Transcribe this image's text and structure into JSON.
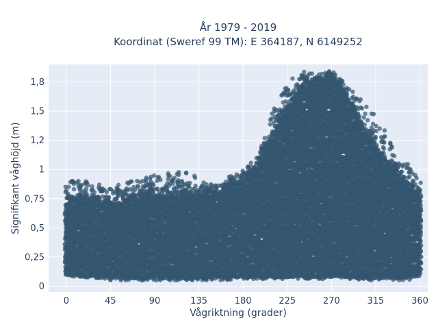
{
  "chart_data": {
    "type": "scatter",
    "title_line1": "År 1979 - 2019",
    "title_line2": "Koordinat (Sweref 99 TM): E 364187, N 6149252",
    "xlabel": "Vågriktning (grader)",
    "ylabel": "Signifikant våghöjd (m)",
    "xlim": [
      -18,
      368
    ],
    "ylim": [
      -0.05,
      1.9
    ],
    "x_ticks": [
      0,
      45,
      90,
      135,
      180,
      225,
      270,
      315,
      360
    ],
    "x_tick_labels": [
      "0",
      "45",
      "90",
      "135",
      "180",
      "225",
      "270",
      "315",
      "360"
    ],
    "y_ticks": [
      0,
      0.25,
      0.5,
      0.75,
      1,
      1.25,
      1.5,
      1.75
    ],
    "y_tick_labels": [
      "0",
      "0,25",
      "0,5",
      "0,75",
      "1",
      "1,2",
      "1,5",
      "1,8"
    ],
    "grid": true,
    "marker_color": "#34566f",
    "plot_bg": "#e5ecf6",
    "envelope": {
      "x": [
        0,
        20,
        45,
        70,
        90,
        120,
        150,
        180,
        195,
        210,
        225,
        240,
        255,
        270,
        285,
        300,
        315,
        330,
        345,
        360
      ],
      "lower": [
        0.1,
        0.09,
        0.08,
        0.08,
        0.08,
        0.08,
        0.08,
        0.09,
        0.09,
        0.09,
        0.09,
        0.09,
        0.09,
        0.09,
        0.09,
        0.08,
        0.08,
        0.08,
        0.08,
        0.1
      ],
      "upper": [
        0.72,
        0.78,
        0.72,
        0.76,
        0.8,
        0.8,
        0.8,
        0.9,
        1.05,
        1.3,
        1.55,
        1.72,
        1.78,
        1.8,
        1.65,
        1.4,
        1.2,
        1.05,
        0.9,
        0.78
      ],
      "outlier_max": [
        0.93,
        0.9,
        0.85,
        0.92,
        0.95,
        1.0,
        0.87,
        1.0,
        1.12,
        1.5,
        1.75,
        1.85,
        1.82,
        1.85,
        1.75,
        1.6,
        1.5,
        1.25,
        1.1,
        0.92
      ]
    }
  }
}
